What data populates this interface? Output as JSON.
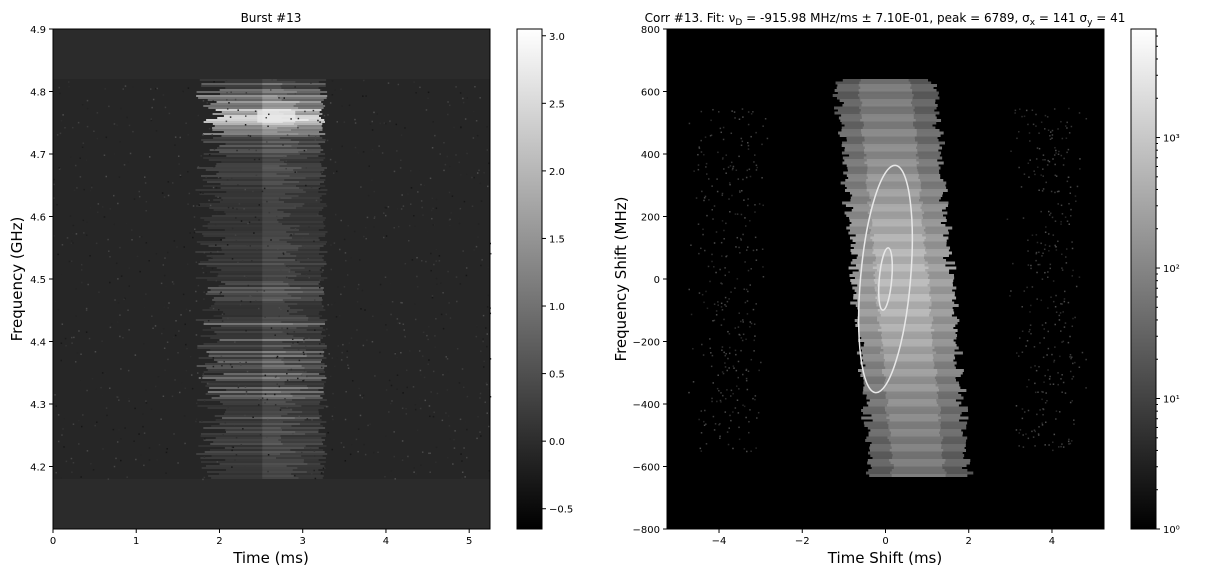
{
  "chart_data": [
    {
      "type": "heatmap",
      "title": "Burst #13",
      "xlabel": "Time (ms)",
      "ylabel": "Frequency (GHz)",
      "xlim": [
        0,
        5.25
      ],
      "ylim": [
        4.1,
        4.9
      ],
      "x_ticks": [
        0,
        1,
        2,
        3,
        4,
        5
      ],
      "x_tick_labels": [
        "0",
        "1",
        "2",
        "3",
        "4",
        "5"
      ],
      "y_ticks": [
        4.2,
        4.3,
        4.4,
        4.5,
        4.6,
        4.7,
        4.8,
        4.9
      ],
      "y_tick_labels": [
        "4.2",
        "4.3",
        "4.4",
        "4.5",
        "4.6",
        "4.7",
        "4.8",
        "4.9"
      ],
      "data_band": {
        "y_range": [
          4.18,
          4.82
        ],
        "pad_value": 0.0,
        "noise_value": 0.0
      },
      "burst": {
        "t_range": [
          1.7,
          3.3
        ],
        "peak_time": 2.55,
        "peak_frequency": 4.76,
        "peak_value": 3.0
      },
      "colorbar": {
        "cmap": "gray",
        "range": [
          -0.65,
          3.05
        ],
        "ticks": [
          -0.5,
          0.0,
          0.5,
          1.0,
          1.5,
          2.0,
          2.5,
          3.0
        ],
        "tick_labels": [
          "−0.5",
          "0.0",
          "0.5",
          "1.0",
          "1.5",
          "2.0",
          "2.5",
          "3.0"
        ]
      },
      "grid": false
    },
    {
      "type": "heatmap",
      "title": "Corr #13. Fit: ν_D = -915.98 MHz/ms ± 7.10E-01, peak = 6789, σ_x = 141 σ_y = 41",
      "xlabel": "Time Shift (ms)",
      "ylabel": "Frequency Shift (MHz)",
      "xlim": [
        -5.25,
        5.25
      ],
      "ylim": [
        -800,
        800
      ],
      "x_ticks": [
        -4,
        -2,
        0,
        2,
        4
      ],
      "x_tick_labels": [
        "−4",
        "−2",
        "0",
        "2",
        "4"
      ],
      "y_ticks": [
        -800,
        -600,
        -400,
        -200,
        0,
        200,
        400,
        600,
        800
      ],
      "y_tick_labels": [
        "−800",
        "−600",
        "−400",
        "−200",
        "0",
        "200",
        "400",
        "600",
        "800"
      ],
      "fit": {
        "drift_rate_MHz_per_ms": -915.98,
        "drift_error": 0.71,
        "peak": 6789,
        "sigma_x": 141,
        "sigma_y": 41
      },
      "contours": [
        {
          "center": [
            0.0,
            0.0
          ],
          "half_width_ms": 0.8,
          "half_height_MHz": 365,
          "tilt": -0.35
        },
        {
          "center": [
            0.0,
            0.0
          ],
          "half_width_ms": 0.2,
          "half_height_MHz": 100,
          "tilt": -0.35
        }
      ],
      "colorbar": {
        "cmap": "gray",
        "scale": "log",
        "range": [
          1,
          6789
        ],
        "ticks": [
          1,
          10,
          100,
          1000
        ],
        "tick_labels": [
          "10⁰",
          "10¹",
          "10²",
          "10³"
        ]
      },
      "grid": false
    }
  ]
}
